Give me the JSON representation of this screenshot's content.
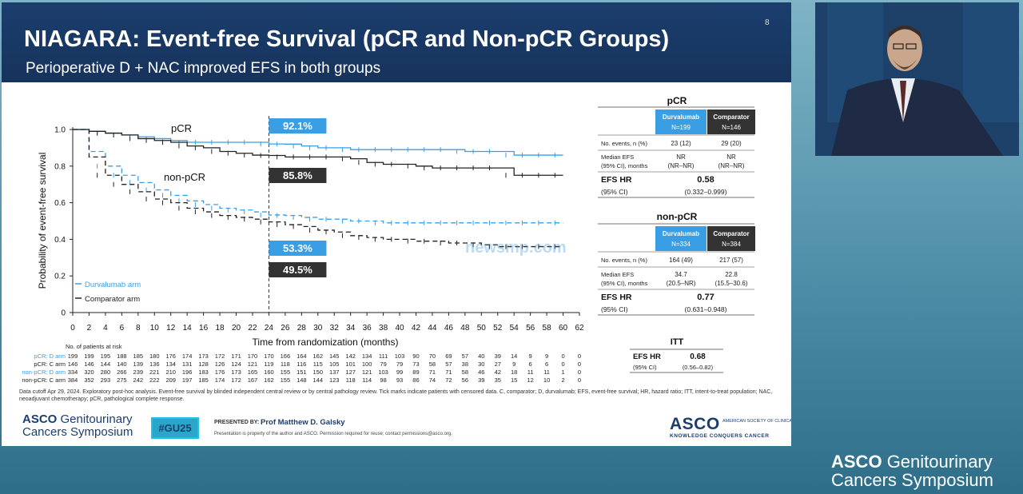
{
  "slide": {
    "number": "8",
    "title": "NIAGARA: Event-free Survival (pCR and Non-pCR Groups)",
    "subtitle": "Perioperative D + NAC improved EFS in both groups",
    "footnote": "Data cutoff Apr 29, 2024. Exploratory post-hoc analysis. Event-free survival by blinded independent central review or by central pathology review. Tick marks indicate patients with censored data. C, comparator; D, durvalumab; EFS, event-free survival; HR, hazard ratio; ITT, intent-to-treat population; NAC, neoadjuvant chemotherapy; pCR, pathological complete response.",
    "hashtag": "#GU25",
    "presented_by_label": "PRESENTED BY:",
    "presenter": "Prof Matthew D. Galsky",
    "property_note": "Presentation is property of the author and ASCO. Permission required for reuse; contact permissions@asco.org.",
    "symposium_logo": {
      "brand": "ASCO",
      "line1": "Genitourinary",
      "line2": "Cancers Symposium"
    },
    "asco_logo": {
      "text": "ASCO",
      "small": "AMERICAN SOCIETY OF CLINICAL ONCOLOGY",
      "tagline": "KNOWLEDGE CONQUERS CANCER"
    },
    "watermark": "newsmp.com"
  },
  "colors": {
    "durvalumab": "#3a9ee4",
    "comparator": "#222222",
    "header": "#1b3e6e"
  },
  "chart_data": {
    "type": "line",
    "title": "",
    "xlabel": "Time from randomization (months)",
    "ylabel": "Probability of event-free survival",
    "xlim": [
      0,
      62
    ],
    "ylim": [
      0,
      1.0
    ],
    "x_ticks": [
      0,
      2,
      4,
      6,
      8,
      10,
      12,
      14,
      16,
      18,
      20,
      22,
      24,
      26,
      28,
      30,
      32,
      34,
      36,
      38,
      40,
      42,
      44,
      46,
      48,
      50,
      52,
      54,
      56,
      58,
      60,
      62
    ],
    "y_ticks": [
      0,
      0.2,
      0.4,
      0.6,
      0.8,
      1.0
    ],
    "y_tick_labels": [
      "0",
      "0.2",
      "0.4",
      "0.6",
      "0.8",
      "1.0"
    ],
    "landmark_month": 24,
    "series": [
      {
        "name": "pCR: D arm",
        "color": "#3a9ee4",
        "dash": false,
        "x": [
          0,
          2,
          4,
          6,
          8,
          10,
          12,
          14,
          16,
          18,
          20,
          22,
          24,
          26,
          28,
          30,
          32,
          34,
          36,
          38,
          40,
          42,
          44,
          46,
          48,
          50,
          52,
          54,
          56,
          58,
          60
        ],
        "y": [
          1.0,
          0.99,
          0.98,
          0.97,
          0.96,
          0.95,
          0.94,
          0.93,
          0.93,
          0.93,
          0.93,
          0.93,
          0.921,
          0.92,
          0.91,
          0.9,
          0.9,
          0.89,
          0.89,
          0.89,
          0.89,
          0.89,
          0.89,
          0.89,
          0.88,
          0.88,
          0.88,
          0.86,
          0.86,
          0.86,
          0.86
        ]
      },
      {
        "name": "pCR: C arm",
        "color": "#222222",
        "dash": false,
        "x": [
          0,
          2,
          4,
          6,
          8,
          10,
          12,
          14,
          16,
          18,
          20,
          22,
          24,
          26,
          28,
          30,
          32,
          34,
          36,
          38,
          40,
          42,
          44,
          46,
          48,
          50,
          52,
          54,
          56,
          58,
          60
        ],
        "y": [
          1.0,
          0.99,
          0.98,
          0.97,
          0.95,
          0.94,
          0.93,
          0.91,
          0.9,
          0.88,
          0.87,
          0.86,
          0.858,
          0.85,
          0.85,
          0.85,
          0.85,
          0.84,
          0.82,
          0.81,
          0.81,
          0.8,
          0.79,
          0.79,
          0.79,
          0.79,
          0.79,
          0.75,
          0.75,
          0.75,
          0.75
        ]
      },
      {
        "name": "non-pCR: D arm",
        "color": "#3a9ee4",
        "dash": true,
        "x": [
          0,
          2,
          4,
          6,
          8,
          10,
          12,
          14,
          16,
          18,
          20,
          22,
          24,
          26,
          28,
          30,
          32,
          34,
          36,
          38,
          40,
          42,
          44,
          46,
          48,
          50,
          52,
          54,
          56,
          58,
          60
        ],
        "y": [
          1.0,
          0.88,
          0.8,
          0.75,
          0.71,
          0.67,
          0.64,
          0.61,
          0.59,
          0.57,
          0.56,
          0.55,
          0.533,
          0.53,
          0.52,
          0.51,
          0.51,
          0.5,
          0.5,
          0.49,
          0.49,
          0.49,
          0.49,
          0.49,
          0.49,
          0.49,
          0.49,
          0.49,
          0.49,
          0.49,
          0.49
        ]
      },
      {
        "name": "non-pCR: C arm",
        "color": "#222222",
        "dash": true,
        "x": [
          0,
          2,
          4,
          6,
          8,
          10,
          12,
          14,
          16,
          18,
          20,
          22,
          24,
          26,
          28,
          30,
          32,
          34,
          36,
          38,
          40,
          42,
          44,
          46,
          48,
          50,
          52,
          54,
          56,
          58,
          60
        ],
        "y": [
          1.0,
          0.85,
          0.75,
          0.7,
          0.66,
          0.62,
          0.6,
          0.57,
          0.55,
          0.53,
          0.52,
          0.51,
          0.495,
          0.48,
          0.47,
          0.45,
          0.44,
          0.42,
          0.41,
          0.4,
          0.4,
          0.39,
          0.39,
          0.38,
          0.38,
          0.37,
          0.36,
          0.36,
          0.36,
          0.36,
          0.36
        ]
      }
    ],
    "labels": {
      "pcr": "pCR",
      "non_pcr": "non-pCR"
    },
    "landmark_values": [
      {
        "label": "92.1%",
        "y": 0.921,
        "color": "#3a9ee4"
      },
      {
        "label": "85.8%",
        "y": 0.858,
        "color": "#333333"
      },
      {
        "label": "53.3%",
        "y": 0.533,
        "color": "#3a9ee4"
      },
      {
        "label": "49.5%",
        "y": 0.495,
        "color": "#333333"
      }
    ],
    "legend": [
      {
        "label": "Durvalumab arm",
        "color": "#3a9ee4"
      },
      {
        "label": "Comparator arm",
        "color": "#222222"
      }
    ],
    "legend_position": "bottom-left",
    "risk_table": {
      "title": "No. of patients at risk",
      "rows": [
        {
          "label": "pCR: D arm",
          "color": "#3a9ee4",
          "values": [
            "199",
            "199",
            "195",
            "188",
            "185",
            "180",
            "176",
            "174",
            "173",
            "172",
            "171",
            "170",
            "170",
            "166",
            "164",
            "162",
            "145",
            "142",
            "134",
            "111",
            "103",
            "90",
            "70",
            "69",
            "57",
            "40",
            "39",
            "14",
            "9",
            "9",
            "0",
            "0"
          ]
        },
        {
          "label": "pCR: C arm",
          "color": "#222222",
          "values": [
            "146",
            "146",
            "144",
            "140",
            "139",
            "136",
            "134",
            "131",
            "128",
            "126",
            "124",
            "121",
            "119",
            "118",
            "116",
            "115",
            "105",
            "101",
            "100",
            "79",
            "79",
            "73",
            "58",
            "57",
            "38",
            "30",
            "27",
            "9",
            "6",
            "6",
            "0",
            "0"
          ]
        },
        {
          "label": "non-pCR: D arm",
          "color": "#3a9ee4",
          "values": [
            "334",
            "320",
            "280",
            "266",
            "239",
            "221",
            "210",
            "196",
            "183",
            "176",
            "173",
            "165",
            "160",
            "155",
            "151",
            "150",
            "137",
            "127",
            "121",
            "103",
            "99",
            "89",
            "71",
            "71",
            "58",
            "46",
            "42",
            "18",
            "11",
            "11",
            "1",
            "0"
          ]
        },
        {
          "label": "non-pCR: C arm",
          "color": "#222222",
          "values": [
            "384",
            "352",
            "293",
            "275",
            "242",
            "222",
            "209",
            "197",
            "185",
            "174",
            "172",
            "167",
            "162",
            "155",
            "148",
            "144",
            "123",
            "118",
            "114",
            "98",
            "93",
            "86",
            "74",
            "72",
            "56",
            "39",
            "35",
            "15",
            "12",
            "10",
            "2",
            "0"
          ]
        }
      ]
    }
  },
  "tables": {
    "pcr": {
      "title": "pCR",
      "durvalumab_header": "Durvalumab",
      "durvalumab_n": "N=199",
      "comparator_header": "Comparator",
      "comparator_n": "N=146",
      "events_label": "No. events, n (%)",
      "events_d": "23 (12)",
      "events_c": "29 (20)",
      "median_label_1": "Median EFS",
      "median_label_2": "(95% CI), months",
      "median_d_1": "NR",
      "median_d_2": "(NR–NR)",
      "median_c_1": "NR",
      "median_c_2": "(NR–NR)",
      "hr_label": "EFS HR",
      "ci_label": "(95% CI)",
      "hr_value": "0.58",
      "hr_ci": "(0.332–0.999)"
    },
    "nonpcr": {
      "title": "non-pCR",
      "durvalumab_header": "Durvalumab",
      "durvalumab_n": "N=334",
      "comparator_header": "Comparator",
      "comparator_n": "N=384",
      "events_label": "No. events, n (%)",
      "events_d": "164 (49)",
      "events_c": "217 (57)",
      "median_label_1": "Median EFS",
      "median_label_2": "(95% CI), months",
      "median_d_1": "34.7",
      "median_d_2": "(20.5–NR)",
      "median_c_1": "22.8",
      "median_c_2": "(15.5–30.6)",
      "hr_label": "EFS HR",
      "ci_label": "(95% CI)",
      "hr_value": "0.77",
      "hr_ci": "(0.631–0.948)"
    },
    "itt": {
      "title": "ITT",
      "hr_label": "EFS HR",
      "ci_label": "(95% CI)",
      "hr_value": "0.68",
      "hr_ci": "(0.56–0.82)"
    }
  },
  "conference_logo": {
    "brand": "ASCO",
    "line1": "Genitourinary",
    "line2": "Cancers Symposium"
  }
}
